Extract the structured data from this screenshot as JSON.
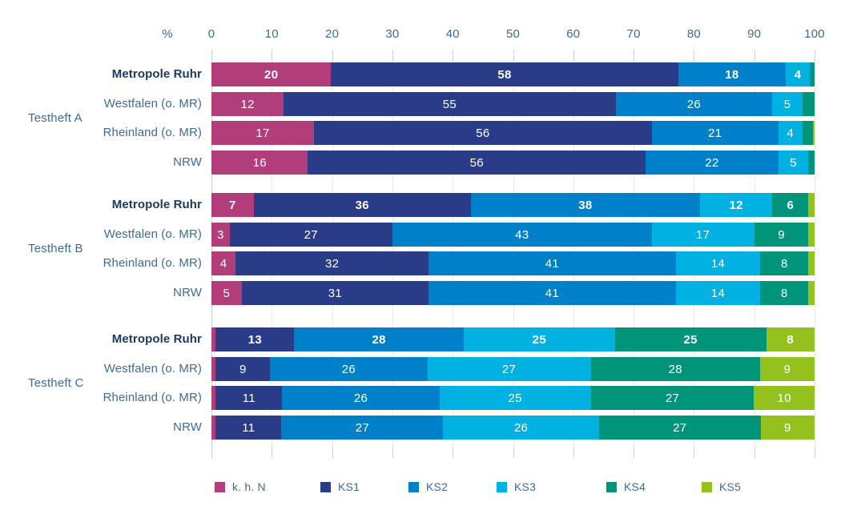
{
  "chart_data": {
    "type": "bar",
    "orientation": "horizontal-stacked",
    "title": "",
    "x_axis": {
      "unit": "%",
      "ticks": [
        0,
        10,
        20,
        30,
        40,
        50,
        60,
        70,
        80,
        90,
        100
      ],
      "range": [
        0,
        100
      ],
      "grid": true
    },
    "series_names": [
      "k. h. N",
      "KS1",
      "KS2",
      "KS3",
      "KS4",
      "KS5"
    ],
    "series_colors": [
      "#b13e7b",
      "#2a3c88",
      "#0080c8",
      "#00b1e2",
      "#00957a",
      "#95c11f"
    ],
    "legend": {
      "position": "bottom",
      "items": [
        {
          "name": "k. h. N",
          "color": "#b13e7b"
        },
        {
          "name": "KS1",
          "color": "#2a3c88"
        },
        {
          "name": "KS2",
          "color": "#0080c8"
        },
        {
          "name": "KS3",
          "color": "#00b1e2"
        },
        {
          "name": "KS4",
          "color": "#00957a"
        },
        {
          "name": "KS5",
          "color": "#95c11f"
        }
      ]
    },
    "groups": [
      {
        "label": "Testheft A",
        "rows": [
          {
            "label": "Metropole Ruhr",
            "bold": true,
            "values": [
              20,
              58,
              18,
              4,
              0.8,
              0
            ],
            "value_labels": [
              "20",
              "58",
              "18",
              "4",
              "",
              ""
            ]
          },
          {
            "label": "Westfalen (o. MR)",
            "bold": false,
            "values": [
              12,
              55,
              26,
              5,
              2,
              0
            ],
            "value_labels": [
              "12",
              "55",
              "26",
              "5",
              "",
              ""
            ]
          },
          {
            "label": "Rheinland (o. MR)",
            "bold": false,
            "values": [
              17,
              56,
              21,
              4,
              1.7,
              0.3
            ],
            "value_labels": [
              "17",
              "56",
              "21",
              "4",
              "",
              ""
            ]
          },
          {
            "label": "NRW",
            "bold": false,
            "values": [
              16,
              56,
              22,
              5,
              1,
              0
            ],
            "value_labels": [
              "16",
              "56",
              "22",
              "5",
              "",
              ""
            ]
          }
        ]
      },
      {
        "label": "Testheft B",
        "rows": [
          {
            "label": "Metropole Ruhr",
            "bold": true,
            "values": [
              7,
              36,
              38,
              12,
              6,
              1
            ],
            "value_labels": [
              "7",
              "36",
              "38",
              "12",
              "6",
              ""
            ]
          },
          {
            "label": "Westfalen (o. MR)",
            "bold": false,
            "values": [
              3,
              27,
              43,
              17,
              9,
              1
            ],
            "value_labels": [
              "3",
              "27",
              "43",
              "17",
              "9",
              ""
            ]
          },
          {
            "label": "Rheinland (o. MR)",
            "bold": false,
            "values": [
              4,
              32,
              41,
              14,
              8,
              1
            ],
            "value_labels": [
              "4",
              "32",
              "41",
              "14",
              "8",
              ""
            ]
          },
          {
            "label": "NRW",
            "bold": false,
            "values": [
              5,
              31,
              41,
              14,
              8,
              1
            ],
            "value_labels": [
              "5",
              "31",
              "41",
              "14",
              "8",
              ""
            ]
          }
        ]
      },
      {
        "label": "Testheft C",
        "rows": [
          {
            "label": "Metropole Ruhr",
            "bold": true,
            "values": [
              0.7,
              13,
              28,
              25,
              25,
              8
            ],
            "value_labels": [
              "",
              "13",
              "28",
              "25",
              "25",
              "8"
            ]
          },
          {
            "label": "Westfalen (o. MR)",
            "bold": false,
            "values": [
              0.7,
              9,
              26,
              27,
              28,
              9
            ],
            "value_labels": [
              "",
              "9",
              "26",
              "27",
              "28",
              "9"
            ]
          },
          {
            "label": "Rheinland (o. MR)",
            "bold": false,
            "values": [
              0.7,
              11,
              26,
              25,
              27,
              10
            ],
            "value_labels": [
              "",
              "11",
              "26",
              "25",
              "27",
              "10"
            ]
          },
          {
            "label": "NRW",
            "bold": false,
            "values": [
              0.7,
              11,
              27,
              26,
              27,
              9
            ],
            "value_labels": [
              "",
              "11",
              "27",
              "26",
              "27",
              "9"
            ]
          }
        ]
      }
    ],
    "text_colors": {
      "axis": "#3e6a94",
      "row_label_bold": "#1b3a63",
      "value_label": "#ffffff"
    }
  }
}
